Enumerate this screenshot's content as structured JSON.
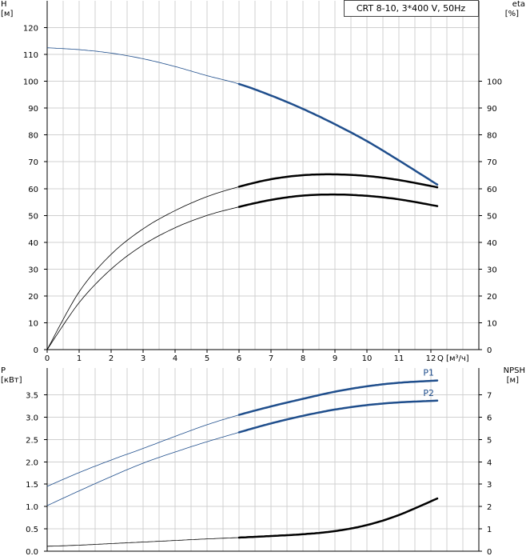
{
  "chart_data": [
    {
      "type": "line",
      "legend": "CRT 8-10, 3*400 V, 50Hz",
      "left_axis": {
        "name": "H",
        "unit": "[м]",
        "range": [
          0,
          130
        ],
        "ticks": [
          0,
          10,
          20,
          30,
          40,
          50,
          60,
          70,
          80,
          90,
          100,
          110,
          120
        ]
      },
      "right_axis": {
        "name": "eta",
        "unit": "[%]",
        "range": [
          0,
          130
        ],
        "ticks": [
          0,
          10,
          20,
          30,
          40,
          50,
          60,
          70,
          80,
          90,
          100
        ]
      },
      "x_axis": {
        "label": "Q [м³/ч]",
        "range": [
          0,
          13.5
        ],
        "ticks": [
          0,
          1,
          2,
          3,
          4,
          5,
          6,
          7,
          8,
          9,
          10,
          11,
          12
        ]
      },
      "operating_range": [
        6,
        12.2
      ],
      "grid": true,
      "series": [
        {
          "key": "H",
          "axis": "left",
          "color": "#1f4e8c",
          "x": [
            0,
            1,
            2,
            3,
            4,
            5,
            6,
            7,
            8,
            9,
            10,
            11,
            12.2
          ],
          "y": [
            112.5,
            111.8,
            110.5,
            108.4,
            105.5,
            102.1,
            99.0,
            94.7,
            89.7,
            84.0,
            77.7,
            70.5,
            61.5
          ]
        },
        {
          "key": "eta_1",
          "axis": "right",
          "color": "#000000",
          "x": [
            0,
            1,
            2,
            3,
            4,
            5,
            6,
            7,
            8,
            9,
            10,
            11,
            12.2
          ],
          "y": [
            0,
            21.5,
            35.5,
            45.0,
            51.8,
            57.0,
            60.7,
            63.5,
            65.0,
            65.3,
            64.7,
            63.2,
            60.5
          ]
        },
        {
          "key": "eta_2",
          "axis": "right",
          "color": "#000000",
          "x": [
            0,
            1,
            2,
            3,
            4,
            5,
            6,
            7,
            8,
            9,
            10,
            11,
            12.2
          ],
          "y": [
            0,
            17.5,
            30.0,
            39.0,
            45.4,
            50.0,
            53.2,
            55.8,
            57.4,
            57.8,
            57.3,
            56.0,
            53.5
          ]
        }
      ]
    },
    {
      "type": "line",
      "left_axis": {
        "name": "P",
        "unit": "[кВт]",
        "range": [
          0,
          4.1
        ],
        "ticks": [
          0.0,
          0.5,
          1.0,
          1.5,
          2.0,
          2.5,
          3.0,
          3.5
        ],
        "tick_labels": [
          "0.0",
          "0.5",
          "1.0",
          "1.5",
          "2.0",
          "2.5",
          "3.0",
          "3.5"
        ]
      },
      "right_axis": {
        "name": "NPSH",
        "unit": "[м]",
        "range": [
          0,
          8.2
        ],
        "ticks": [
          0,
          1,
          2,
          3,
          4,
          5,
          6,
          7
        ]
      },
      "x_axis": {
        "range": [
          0,
          13.5
        ]
      },
      "operating_range": [
        6,
        12.2
      ],
      "grid": true,
      "series": [
        {
          "name": "P1",
          "axis": "left",
          "color": "#1f4e8c",
          "x": [
            0,
            1,
            2,
            3,
            4,
            5,
            6,
            7,
            8,
            9,
            10,
            11,
            12.2
          ],
          "y": [
            1.45,
            1.76,
            2.04,
            2.3,
            2.57,
            2.83,
            3.05,
            3.24,
            3.41,
            3.57,
            3.69,
            3.77,
            3.82
          ]
        },
        {
          "name": "P2",
          "axis": "left",
          "color": "#1f4e8c",
          "x": [
            0,
            1,
            2,
            3,
            4,
            5,
            6,
            7,
            8,
            9,
            10,
            11,
            12.2
          ],
          "y": [
            1.02,
            1.35,
            1.67,
            1.97,
            2.22,
            2.45,
            2.66,
            2.86,
            3.03,
            3.17,
            3.27,
            3.33,
            3.37
          ]
        },
        {
          "key": "NPSH",
          "axis": "right",
          "color": "#000000",
          "x": [
            0,
            1,
            2,
            3,
            4,
            5,
            6,
            7,
            8,
            9,
            10,
            11,
            12.2
          ],
          "y": [
            0.22,
            0.27,
            0.34,
            0.41,
            0.48,
            0.55,
            0.61,
            0.68,
            0.76,
            0.9,
            1.17,
            1.62,
            2.36
          ]
        }
      ]
    }
  ]
}
